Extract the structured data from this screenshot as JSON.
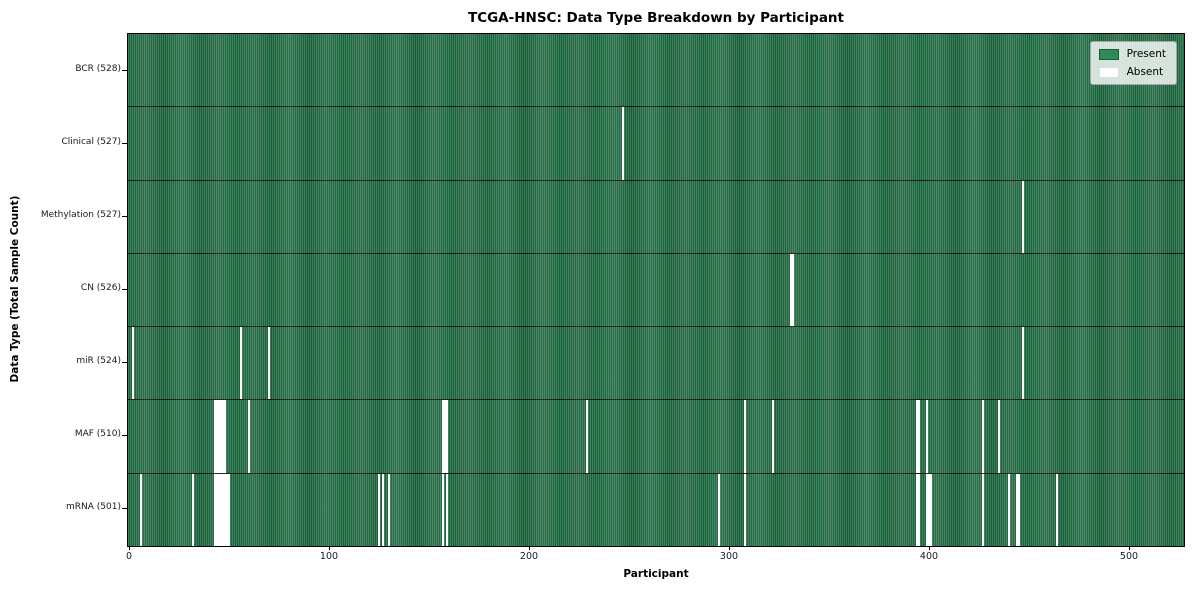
{
  "chart_data": {
    "type": "heatmap",
    "title": "TCGA-HNSC: Data Type Breakdown by Participant",
    "xlabel": "Participant",
    "ylabel": "Data Type (Total Sample Count)",
    "x_ticks": [
      0,
      100,
      200,
      300,
      400,
      500
    ],
    "x_range": [
      0,
      528
    ],
    "n_participants": 528,
    "grid": false,
    "legend_position": "upper right",
    "legend": [
      {
        "label": "Present",
        "color": "#2e8b57"
      },
      {
        "label": "Absent",
        "color": "#ffffff"
      }
    ],
    "colors": {
      "present_fill": "#2e8455",
      "present_edge": "#1f5e3b",
      "absent": "#ffffff",
      "row_separator": "#141414"
    },
    "rows": [
      {
        "label": "BCR (528)",
        "data_type": "BCR",
        "present_count": 528,
        "absent_participants": []
      },
      {
        "label": "Clinical (527)",
        "data_type": "Clinical",
        "present_count": 527,
        "absent_participants": [
          247
        ]
      },
      {
        "label": "Methylation (527)",
        "data_type": "Methylation",
        "present_count": 527,
        "absent_participants": [
          447
        ]
      },
      {
        "label": "CN (526)",
        "data_type": "CN",
        "present_count": 526,
        "absent_participants": [
          331,
          332
        ]
      },
      {
        "label": "miR (524)",
        "data_type": "miR",
        "present_count": 524,
        "absent_participants": [
          2,
          56,
          70,
          447
        ]
      },
      {
        "label": "MAF (510)",
        "data_type": "MAF",
        "present_count": 510,
        "absent_participants": [
          43,
          44,
          45,
          46,
          47,
          48,
          60,
          157,
          158,
          159,
          229,
          308,
          322,
          394,
          395,
          399,
          427,
          435
        ]
      },
      {
        "label": "mRNA (501)",
        "data_type": "mRNA",
        "present_count": 501,
        "absent_participants": [
          6,
          32,
          43,
          44,
          45,
          46,
          47,
          48,
          49,
          50,
          125,
          127,
          130,
          157,
          159,
          295,
          308,
          394,
          395,
          399,
          400,
          401,
          427,
          440,
          444,
          445,
          464
        ]
      }
    ]
  }
}
